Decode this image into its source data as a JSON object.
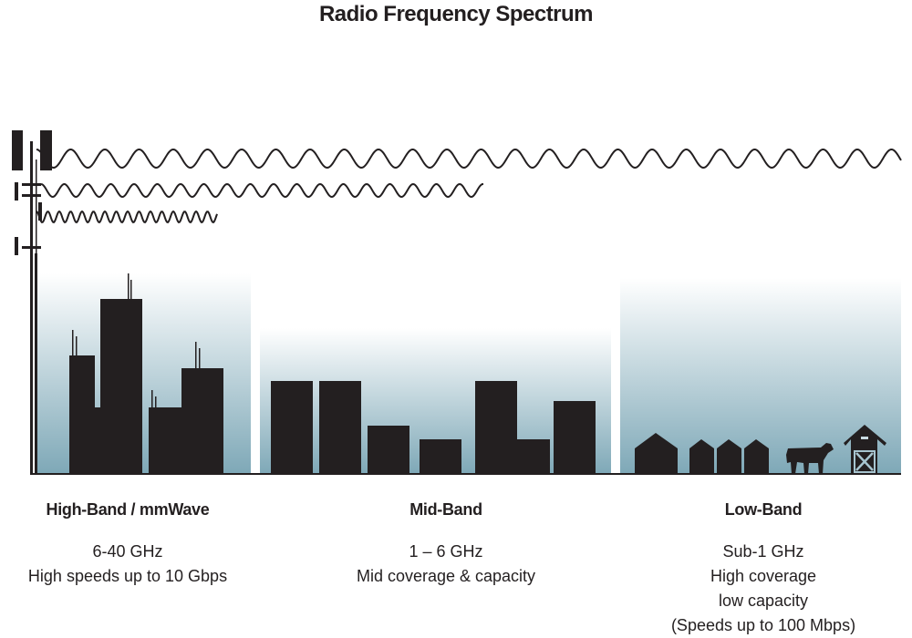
{
  "title": "Radio Frequency Spectrum",
  "colors": {
    "ink": "#231f20",
    "gradient_bottom": "#7ea8b7",
    "gradient_top": "#ffffff"
  },
  "bands": [
    {
      "name": "High-Band / mmWave",
      "lines": [
        "6-40 GHz",
        "High speeds up to 10 Gbps"
      ]
    },
    {
      "name": "Mid-Band",
      "lines": [
        "1 – 6 GHz",
        "Mid coverage & capacity"
      ]
    },
    {
      "name": "Low-Band",
      "lines": [
        "Sub-1 GHz",
        "High coverage",
        "low capacity",
        "(Speeds up to 100 Mbps)"
      ]
    }
  ]
}
